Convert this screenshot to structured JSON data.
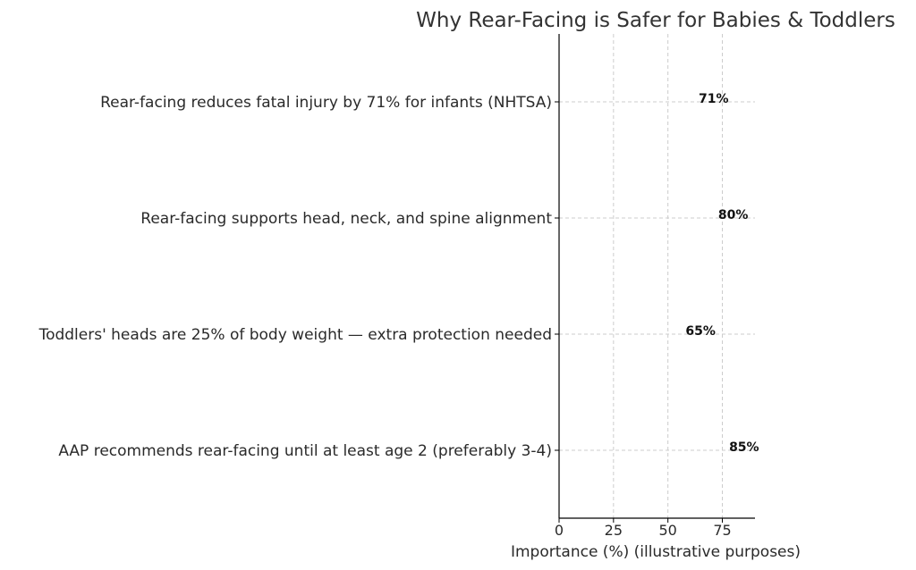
{
  "chart_data": {
    "type": "bar",
    "orientation": "horizontal",
    "title": "Why Rear-Facing is Safer for Babies & Toddlers",
    "xlabel": "Importance (%) (illustrative purposes)",
    "ylabel": "",
    "categories": [
      "Rear-facing reduces fatal injury by 71% for infants (NHTSA)",
      "Rear-facing supports head, neck, and spine alignment",
      "Toddlers' heads are 25% of body weight — extra protection needed",
      "AAP recommends rear-facing until at least age 2 (preferably 3-4)"
    ],
    "values": [
      71,
      80,
      65,
      85
    ],
    "data_labels": [
      "71%",
      "80%",
      "65%",
      "85%"
    ],
    "xlim": [
      0,
      90
    ],
    "xticks": [
      0,
      25,
      50,
      75
    ],
    "xtick_labels": [
      "0",
      "25",
      "50",
      "75"
    ],
    "grid": true,
    "legend": "none",
    "bar_color": "#ffffff",
    "grid_color": "#cccccc"
  }
}
